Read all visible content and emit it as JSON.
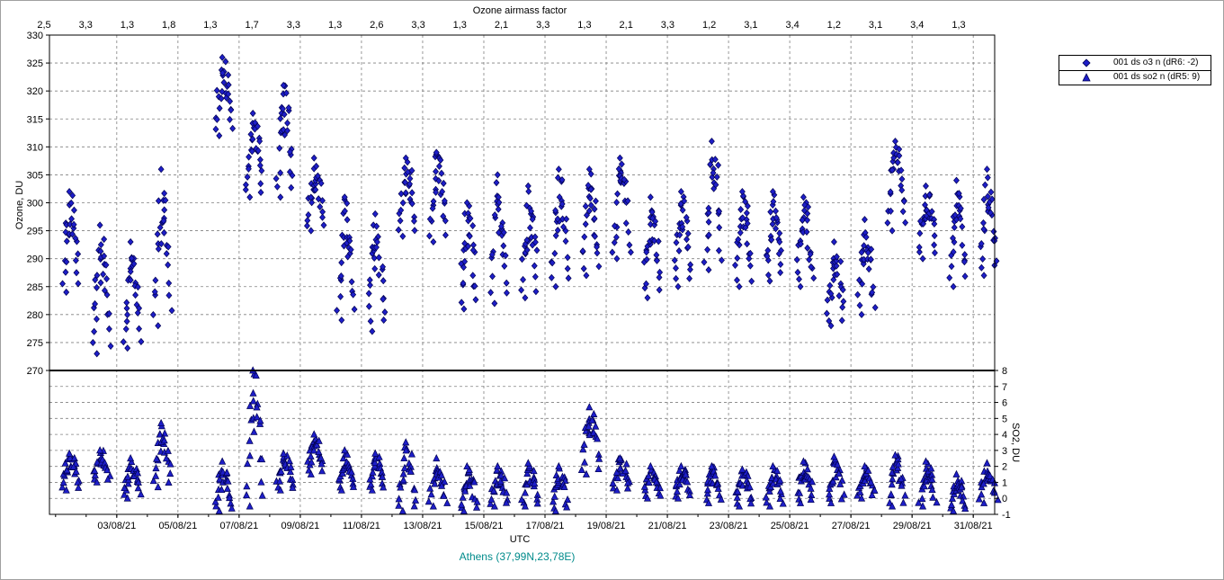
{
  "chart_data": {
    "type": "scatter",
    "top_axis_title": "Ozone airmass factor",
    "top_axis_labels": [
      "2,5",
      "3,3",
      "1,3",
      "1,8",
      "1,3",
      "1,7",
      "3,3",
      "1,3",
      "2,6",
      "3,3",
      "1,3",
      "2,1",
      "3,3",
      "1,3",
      "2,1",
      "3,3",
      "1,2",
      "3,1",
      "3,4",
      "1,2",
      "3,1",
      "3,4",
      "1,3"
    ],
    "xlabel": "UTC",
    "x_tick_labels": [
      "03/08/21",
      "05/08/21",
      "07/08/21",
      "09/08/21",
      "11/08/21",
      "13/08/21",
      "15/08/21",
      "17/08/21",
      "19/08/21",
      "21/08/21",
      "23/08/21",
      "25/08/21",
      "27/08/21",
      "29/08/21",
      "31/08/21"
    ],
    "xlim_days": [
      0.8,
      31.7
    ],
    "ozone_panel": {
      "ylabel": "Ozone, DU",
      "ylim": [
        270,
        330
      ],
      "y_ticks": [
        270,
        275,
        280,
        285,
        290,
        295,
        300,
        305,
        310,
        315,
        320,
        325,
        330
      ],
      "series_name": "001 ds o3  n (dR6: -2)",
      "marker": "diamond",
      "daily": [
        {
          "day": 1,
          "min": 284,
          "max": 302
        },
        {
          "day": 2,
          "min": 273,
          "max": 296
        },
        {
          "day": 3,
          "min": 274,
          "max": 293
        },
        {
          "day": 4,
          "min": 278,
          "max": 306
        },
        {
          "day": 6,
          "min": 312,
          "max": 326
        },
        {
          "day": 7,
          "min": 301,
          "max": 316
        },
        {
          "day": 8,
          "min": 301,
          "max": 321
        },
        {
          "day": 9,
          "min": 295,
          "max": 308
        },
        {
          "day": 10,
          "min": 279,
          "max": 301
        },
        {
          "day": 11,
          "min": 277,
          "max": 298
        },
        {
          "day": 12,
          "min": 294,
          "max": 308
        },
        {
          "day": 13,
          "min": 293,
          "max": 309
        },
        {
          "day": 14,
          "min": 281,
          "max": 300
        },
        {
          "day": 15,
          "min": 282,
          "max": 305
        },
        {
          "day": 16,
          "min": 283,
          "max": 303
        },
        {
          "day": 17,
          "min": 285,
          "max": 306
        },
        {
          "day": 18,
          "min": 287,
          "max": 306
        },
        {
          "day": 19,
          "min": 290,
          "max": 308
        },
        {
          "day": 20,
          "min": 283,
          "max": 301
        },
        {
          "day": 21,
          "min": 285,
          "max": 302
        },
        {
          "day": 22,
          "min": 288,
          "max": 311
        },
        {
          "day": 23,
          "min": 285,
          "max": 302
        },
        {
          "day": 24,
          "min": 286,
          "max": 302
        },
        {
          "day": 25,
          "min": 285,
          "max": 301
        },
        {
          "day": 26,
          "min": 278,
          "max": 293
        },
        {
          "day": 27,
          "min": 280,
          "max": 297
        },
        {
          "day": 28,
          "min": 295,
          "max": 311
        },
        {
          "day": 29,
          "min": 290,
          "max": 303
        },
        {
          "day": 30,
          "min": 285,
          "max": 304
        },
        {
          "day": 31,
          "min": 287,
          "max": 306
        }
      ]
    },
    "so2_panel": {
      "ylabel": "SO2, DU",
      "ylim": [
        -1,
        8
      ],
      "y_ticks": [
        -1,
        0,
        1,
        2,
        3,
        4,
        5,
        6,
        7,
        8
      ],
      "series_name": "001 ds so2 n (dR5: 9)",
      "marker": "triangle",
      "daily": [
        {
          "day": 1,
          "min": 0.5,
          "max": 2.8
        },
        {
          "day": 2,
          "min": 1.0,
          "max": 3.0
        },
        {
          "day": 3,
          "min": 0.0,
          "max": 2.5
        },
        {
          "day": 4,
          "min": 0.7,
          "max": 4.7
        },
        {
          "day": 6,
          "min": -0.8,
          "max": 2.3
        },
        {
          "day": 7,
          "min": -0.5,
          "max": 8.0
        },
        {
          "day": 8,
          "min": 0.5,
          "max": 2.8
        },
        {
          "day": 9,
          "min": 1.5,
          "max": 4.0
        },
        {
          "day": 10,
          "min": 0.5,
          "max": 3.0
        },
        {
          "day": 11,
          "min": 0.5,
          "max": 2.8
        },
        {
          "day": 12,
          "min": -0.8,
          "max": 3.5
        },
        {
          "day": 13,
          "min": -0.5,
          "max": 2.5
        },
        {
          "day": 14,
          "min": -0.8,
          "max": 2.0
        },
        {
          "day": 15,
          "min": -0.5,
          "max": 2.0
        },
        {
          "day": 16,
          "min": -0.5,
          "max": 2.2
        },
        {
          "day": 17,
          "min": -0.8,
          "max": 2.0
        },
        {
          "day": 18,
          "min": 1.5,
          "max": 5.7
        },
        {
          "day": 19,
          "min": 0.5,
          "max": 2.5
        },
        {
          "day": 20,
          "min": 0.0,
          "max": 2.0
        },
        {
          "day": 21,
          "min": 0.0,
          "max": 2.0
        },
        {
          "day": 22,
          "min": -0.3,
          "max": 2.0
        },
        {
          "day": 23,
          "min": -0.5,
          "max": 1.8
        },
        {
          "day": 24,
          "min": -0.5,
          "max": 2.0
        },
        {
          "day": 25,
          "min": -0.3,
          "max": 2.3
        },
        {
          "day": 26,
          "min": -0.3,
          "max": 2.6
        },
        {
          "day": 27,
          "min": 0.0,
          "max": 2.0
        },
        {
          "day": 28,
          "min": -0.5,
          "max": 2.7
        },
        {
          "day": 29,
          "min": -0.5,
          "max": 2.3
        },
        {
          "day": 30,
          "min": -0.8,
          "max": 1.5
        },
        {
          "day": 31,
          "min": -0.3,
          "max": 2.2
        }
      ]
    },
    "legend_position": "right",
    "grid": true,
    "location_label": "Athens (37,99N,23,78E)",
    "colors": {
      "marker_fill": "#1e1ec8",
      "marker_stroke": "#000050",
      "grid": "#808080",
      "location_text": "#008b8b"
    }
  }
}
